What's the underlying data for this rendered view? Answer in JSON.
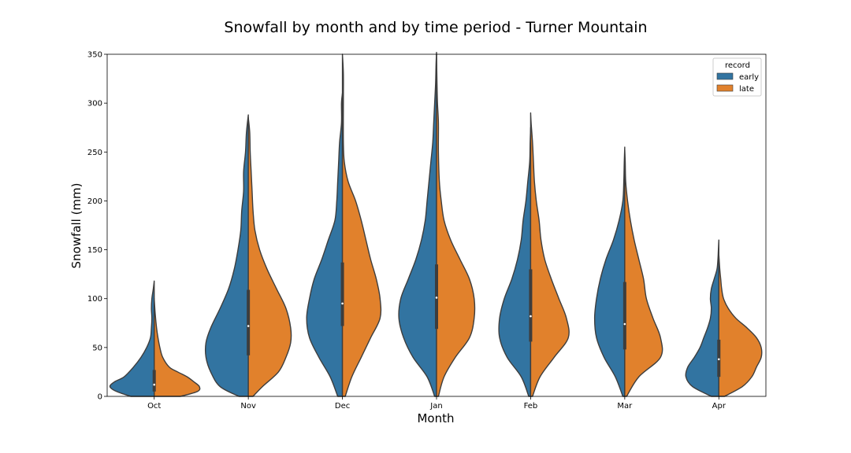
{
  "chart_data": {
    "type": "violin",
    "title": "Snowfall by month and by time period - Turner Mountain",
    "xlabel": "Month",
    "ylabel": "Snowfall (mm)",
    "ylim": [
      0,
      350
    ],
    "yticks": [
      0,
      50,
      100,
      150,
      200,
      250,
      300,
      350
    ],
    "categories": [
      "Oct",
      "Nov",
      "Dec",
      "Jan",
      "Feb",
      "Mar",
      "Apr"
    ],
    "legend": {
      "title": "record",
      "position": "top-right"
    },
    "grid": false,
    "split": true,
    "series": [
      {
        "name": "early",
        "color": "#3274a1"
      },
      {
        "name": "late",
        "color": "#e1812c"
      }
    ],
    "violins": [
      {
        "category": "Oct",
        "early": [
          [
            0,
            0.25
          ],
          [
            5,
            0.4
          ],
          [
            10,
            0.47
          ],
          [
            15,
            0.42
          ],
          [
            20,
            0.32
          ],
          [
            30,
            0.22
          ],
          [
            40,
            0.14
          ],
          [
            50,
            0.08
          ],
          [
            60,
            0.04
          ],
          [
            70,
            0.03
          ],
          [
            80,
            0.025
          ],
          [
            90,
            0.03
          ],
          [
            100,
            0.025
          ],
          [
            110,
            0.01
          ],
          [
            118,
            0
          ]
        ],
        "late": [
          [
            0,
            0.28
          ],
          [
            5,
            0.46
          ],
          [
            10,
            0.48
          ],
          [
            15,
            0.42
          ],
          [
            20,
            0.35
          ],
          [
            25,
            0.25
          ],
          [
            30,
            0.16
          ],
          [
            40,
            0.09
          ],
          [
            50,
            0.06
          ],
          [
            60,
            0.04
          ],
          [
            70,
            0.025
          ],
          [
            85,
            0.01
          ],
          [
            100,
            0
          ]
        ],
        "box": {
          "q1": 5,
          "q3": 27,
          "median": 12
        }
      },
      {
        "category": "Nov",
        "early": [
          [
            0,
            0.1
          ],
          [
            10,
            0.3
          ],
          [
            25,
            0.4
          ],
          [
            40,
            0.45
          ],
          [
            55,
            0.45
          ],
          [
            70,
            0.4
          ],
          [
            90,
            0.3
          ],
          [
            110,
            0.21
          ],
          [
            130,
            0.15
          ],
          [
            150,
            0.11
          ],
          [
            170,
            0.08
          ],
          [
            190,
            0.07
          ],
          [
            210,
            0.05
          ],
          [
            230,
            0.05
          ],
          [
            250,
            0.03
          ],
          [
            270,
            0.02
          ],
          [
            288,
            0
          ]
        ],
        "late": [
          [
            0,
            0.05
          ],
          [
            10,
            0.15
          ],
          [
            25,
            0.32
          ],
          [
            40,
            0.4
          ],
          [
            55,
            0.45
          ],
          [
            70,
            0.45
          ],
          [
            90,
            0.4
          ],
          [
            110,
            0.3
          ],
          [
            130,
            0.2
          ],
          [
            150,
            0.12
          ],
          [
            170,
            0.07
          ],
          [
            190,
            0.05
          ],
          [
            210,
            0.04
          ],
          [
            230,
            0.03
          ],
          [
            250,
            0.02
          ],
          [
            270,
            0.015
          ],
          [
            285,
            0
          ]
        ],
        "box": {
          "q1": 42,
          "q3": 109,
          "median": 72
        }
      },
      {
        "category": "Dec",
        "early": [
          [
            0,
            0.05
          ],
          [
            20,
            0.13
          ],
          [
            40,
            0.25
          ],
          [
            60,
            0.35
          ],
          [
            80,
            0.38
          ],
          [
            100,
            0.35
          ],
          [
            120,
            0.3
          ],
          [
            140,
            0.22
          ],
          [
            160,
            0.15
          ],
          [
            180,
            0.08
          ],
          [
            200,
            0.06
          ],
          [
            220,
            0.05
          ],
          [
            240,
            0.04
          ],
          [
            260,
            0.03
          ],
          [
            280,
            0.01
          ],
          [
            300,
            0.01
          ],
          [
            310,
            0
          ]
        ],
        "late": [
          [
            0,
            0.03
          ],
          [
            20,
            0.1
          ],
          [
            40,
            0.2
          ],
          [
            60,
            0.3
          ],
          [
            80,
            0.4
          ],
          [
            100,
            0.4
          ],
          [
            120,
            0.36
          ],
          [
            140,
            0.3
          ],
          [
            160,
            0.25
          ],
          [
            180,
            0.2
          ],
          [
            200,
            0.14
          ],
          [
            220,
            0.06
          ],
          [
            240,
            0.02
          ],
          [
            260,
            0.01
          ],
          [
            300,
            0.01
          ],
          [
            330,
            0.01
          ],
          [
            350,
            0
          ]
        ],
        "box": {
          "q1": 72,
          "q3": 137,
          "median": 95
        }
      },
      {
        "category": "Jan",
        "early": [
          [
            0,
            0.02
          ],
          [
            20,
            0.1
          ],
          [
            40,
            0.25
          ],
          [
            60,
            0.35
          ],
          [
            80,
            0.4
          ],
          [
            100,
            0.38
          ],
          [
            120,
            0.3
          ],
          [
            140,
            0.22
          ],
          [
            160,
            0.16
          ],
          [
            180,
            0.12
          ],
          [
            200,
            0.1
          ],
          [
            220,
            0.08
          ],
          [
            240,
            0.06
          ],
          [
            260,
            0.04
          ],
          [
            280,
            0.03
          ],
          [
            300,
            0.02
          ],
          [
            320,
            0.01
          ],
          [
            340,
            0.005
          ],
          [
            352,
            0
          ]
        ],
        "late": [
          [
            0,
            0.02
          ],
          [
            20,
            0.08
          ],
          [
            40,
            0.2
          ],
          [
            60,
            0.35
          ],
          [
            80,
            0.4
          ],
          [
            100,
            0.4
          ],
          [
            120,
            0.35
          ],
          [
            140,
            0.25
          ],
          [
            160,
            0.15
          ],
          [
            180,
            0.08
          ],
          [
            200,
            0.05
          ],
          [
            220,
            0.03
          ],
          [
            250,
            0.02
          ],
          [
            280,
            0.02
          ],
          [
            300,
            0.01
          ],
          [
            320,
            0.005
          ],
          [
            350,
            0
          ]
        ],
        "box": {
          "q1": 69,
          "q3": 135,
          "median": 101
        }
      },
      {
        "category": "Feb",
        "early": [
          [
            0,
            0.02
          ],
          [
            20,
            0.1
          ],
          [
            40,
            0.25
          ],
          [
            60,
            0.33
          ],
          [
            80,
            0.33
          ],
          [
            100,
            0.28
          ],
          [
            120,
            0.2
          ],
          [
            140,
            0.14
          ],
          [
            160,
            0.1
          ],
          [
            180,
            0.08
          ],
          [
            200,
            0.05
          ],
          [
            220,
            0.03
          ],
          [
            240,
            0.01
          ],
          [
            260,
            0.005
          ],
          [
            275,
            0
          ]
        ],
        "late": [
          [
            0,
            0.02
          ],
          [
            20,
            0.1
          ],
          [
            40,
            0.25
          ],
          [
            60,
            0.4
          ],
          [
            80,
            0.38
          ],
          [
            100,
            0.3
          ],
          [
            120,
            0.22
          ],
          [
            140,
            0.15
          ],
          [
            160,
            0.11
          ],
          [
            180,
            0.09
          ],
          [
            200,
            0.06
          ],
          [
            220,
            0.04
          ],
          [
            240,
            0.03
          ],
          [
            260,
            0.02
          ],
          [
            280,
            0.005
          ],
          [
            290,
            0
          ]
        ],
        "box": {
          "q1": 56,
          "q3": 130,
          "median": 82
        }
      },
      {
        "category": "Mar",
        "early": [
          [
            0,
            0.02
          ],
          [
            20,
            0.1
          ],
          [
            40,
            0.22
          ],
          [
            60,
            0.3
          ],
          [
            80,
            0.32
          ],
          [
            100,
            0.3
          ],
          [
            120,
            0.26
          ],
          [
            140,
            0.2
          ],
          [
            160,
            0.12
          ],
          [
            180,
            0.06
          ],
          [
            200,
            0.02
          ],
          [
            220,
            0.01
          ],
          [
            240,
            0.005
          ],
          [
            255,
            0
          ]
        ],
        "late": [
          [
            0,
            0.02
          ],
          [
            20,
            0.15
          ],
          [
            40,
            0.38
          ],
          [
            60,
            0.38
          ],
          [
            80,
            0.3
          ],
          [
            100,
            0.23
          ],
          [
            120,
            0.2
          ],
          [
            140,
            0.15
          ],
          [
            160,
            0.1
          ],
          [
            180,
            0.06
          ],
          [
            200,
            0.03
          ],
          [
            220,
            0.01
          ],
          [
            240,
            0.005
          ],
          [
            252,
            0
          ]
        ],
        "box": {
          "q1": 48,
          "q3": 117,
          "median": 74
        }
      },
      {
        "category": "Apr",
        "early": [
          [
            0,
            0.08
          ],
          [
            10,
            0.28
          ],
          [
            20,
            0.35
          ],
          [
            30,
            0.33
          ],
          [
            40,
            0.26
          ],
          [
            50,
            0.2
          ],
          [
            60,
            0.16
          ],
          [
            70,
            0.12
          ],
          [
            80,
            0.09
          ],
          [
            90,
            0.08
          ],
          [
            100,
            0.09
          ],
          [
            110,
            0.08
          ],
          [
            120,
            0.05
          ],
          [
            130,
            0.02
          ],
          [
            140,
            0.01
          ],
          [
            150,
            0.005
          ],
          [
            160,
            0
          ]
        ],
        "late": [
          [
            0,
            0.06
          ],
          [
            10,
            0.25
          ],
          [
            20,
            0.35
          ],
          [
            30,
            0.4
          ],
          [
            40,
            0.45
          ],
          [
            50,
            0.45
          ],
          [
            60,
            0.4
          ],
          [
            70,
            0.3
          ],
          [
            80,
            0.18
          ],
          [
            90,
            0.1
          ],
          [
            100,
            0.05
          ],
          [
            110,
            0.03
          ],
          [
            120,
            0.02
          ],
          [
            130,
            0.01
          ],
          [
            145,
            0
          ]
        ],
        "box": {
          "q1": 20,
          "q3": 58,
          "median": 38
        }
      }
    ]
  }
}
